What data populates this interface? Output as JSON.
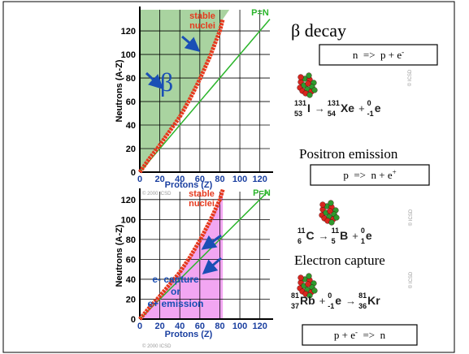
{
  "slide": {
    "plots": [
      {
        "xticks": [
          0,
          20,
          40,
          60,
          80,
          100,
          120
        ],
        "yticks": [
          0,
          20,
          40,
          60,
          80,
          100,
          120
        ],
        "xlim": [
          0,
          130
        ],
        "ylim": [
          0,
          138
        ],
        "ylabel": "Neutrons (A-Z)",
        "xlabel": "Protons (Z)",
        "line_label": "P=N",
        "stable_label": [
          "stable",
          "nuclei"
        ],
        "region_label": [
          "β"
        ],
        "credit": "© 2000 ICSD",
        "stable_band": {
          "Z": [
            0,
            10,
            20,
            30,
            40,
            50,
            60,
            70,
            80,
            83
          ],
          "N": [
            0,
            12,
            23,
            35,
            47,
            62,
            79,
            98,
            120,
            130
          ]
        }
      },
      {
        "xticks": [
          0,
          20,
          40,
          60,
          80,
          100,
          120
        ],
        "yticks": [
          0,
          20,
          40,
          60,
          80,
          100,
          120
        ],
        "xlim": [
          0,
          130
        ],
        "ylim": [
          0,
          128
        ],
        "ylabel": "Neutrons (A-Z)",
        "xlabel": "Protons (Z)",
        "line_label": "P=N",
        "stable_label": [
          "stable",
          "nuclei"
        ],
        "region_label": [
          "e- capture",
          "or",
          "e+ emission"
        ],
        "credit": "© 2000 ICSD",
        "stable_band": {
          "Z": [
            0,
            10,
            20,
            30,
            40,
            50,
            60,
            70,
            80,
            83
          ],
          "N": [
            0,
            12,
            23,
            35,
            47,
            62,
            79,
            98,
            120,
            130
          ]
        }
      }
    ],
    "sections": [
      {
        "title": "β decay",
        "box": {
          "text": "n  =>  p + e",
          "sup": "-"
        },
        "credit": "© ICSD",
        "equation": [
          {
            "mass": "131",
            "z": "53",
            "sym": "I"
          },
          {
            "op": "→"
          },
          {
            "mass": "131",
            "z": "54",
            "sym": "Xe"
          },
          {
            "op": "+"
          },
          {
            "mass": "0",
            "z": "-1",
            "sym": "e"
          }
        ]
      },
      {
        "title": "Positron emission",
        "box": {
          "text": "p  =>  n + e",
          "sup": "+"
        },
        "credit": "© ICSD",
        "equation": [
          {
            "mass": "11",
            "z": "6",
            "sym": "C"
          },
          {
            "op": "→"
          },
          {
            "mass": "11",
            "z": "5",
            "sym": "B"
          },
          {
            "op": "+"
          },
          {
            "mass": "0",
            "z": "1",
            "sym": "e"
          }
        ]
      },
      {
        "title": "Electron capture",
        "box": {
          "text": "p + e",
          "sup": "-",
          "tail": "  =>  n"
        },
        "credit": "© ICSD",
        "equation": [
          {
            "mass": "81",
            "z": "37",
            "sym": "Rb"
          },
          {
            "op": "+"
          },
          {
            "mass": "0",
            "z": "-1",
            "sym": "e"
          },
          {
            "op": "→"
          },
          {
            "mass": "81",
            "z": "36",
            "sym": "Kr"
          }
        ]
      }
    ]
  }
}
